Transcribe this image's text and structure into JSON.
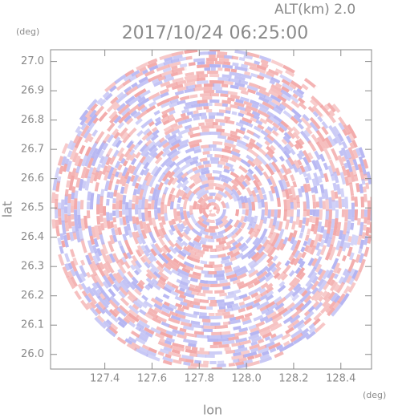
{
  "chart_data": {
    "type": "ppi",
    "title": "2017/10/24 06:25:00",
    "subtitle": "ALT(km) 2.0",
    "x_label": "lon",
    "y_label": "lat",
    "x_unit": "(deg)",
    "y_unit": "(deg)",
    "xlim": [
      127.17,
      128.53
    ],
    "ylim": [
      25.95,
      27.04
    ],
    "xticks": [
      127.4,
      127.6,
      127.8,
      {
        "value": 128.0,
        "label": "128.0"
      },
      128.2,
      128.4
    ],
    "yticks": [
      {
        "value": 26.0,
        "label": "26.0"
      },
      26.1,
      26.2,
      26.3,
      26.4,
      26.5,
      26.6,
      26.7,
      26.8,
      26.9,
      {
        "value": 27.0,
        "label": "27.0"
      }
    ],
    "colors": [
      "#f2a6a6",
      "#b4b4f2",
      "#ffffff"
    ]
  }
}
